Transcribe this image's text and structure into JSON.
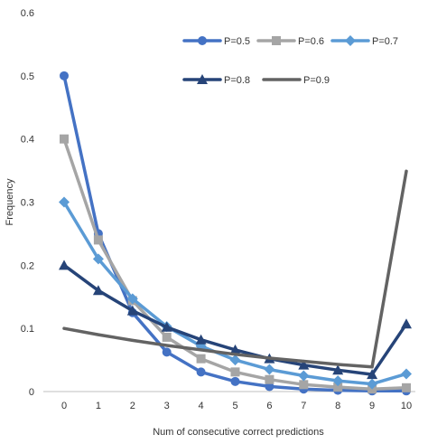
{
  "chart_data": {
    "type": "line",
    "xlabel": "Num of consecutive correct predictions",
    "ylabel": "Frequency",
    "x": [
      0,
      1,
      2,
      3,
      4,
      5,
      6,
      7,
      8,
      9,
      10
    ],
    "ylim": [
      0,
      0.6
    ],
    "yticks": [
      "0",
      "0.1",
      "0.2",
      "0.3",
      "0.4",
      "0.5",
      "0.6"
    ],
    "grid": false,
    "legend_position": "top-right",
    "series": [
      {
        "name": "P=0.5",
        "color": "#4472C4",
        "marker": "circle",
        "values": [
          0.5,
          0.25,
          0.125,
          0.0625,
          0.031,
          0.016,
          0.008,
          0.004,
          0.002,
          0.001,
          0.001
        ]
      },
      {
        "name": "P=0.6",
        "color": "#A5A5A5",
        "marker": "square",
        "values": [
          0.4,
          0.24,
          0.144,
          0.086,
          0.052,
          0.031,
          0.019,
          0.011,
          0.007,
          0.004,
          0.006
        ]
      },
      {
        "name": "P=0.7",
        "color": "#5B9BD5",
        "marker": "diamond",
        "values": [
          0.3,
          0.21,
          0.147,
          0.103,
          0.072,
          0.05,
          0.035,
          0.025,
          0.017,
          0.012,
          0.028
        ]
      },
      {
        "name": "P=0.8",
        "color": "#264478",
        "marker": "triangle",
        "values": [
          0.2,
          0.16,
          0.128,
          0.102,
          0.082,
          0.066,
          0.052,
          0.042,
          0.034,
          0.027,
          0.107
        ]
      },
      {
        "name": "P=0.9",
        "color": "#636363",
        "marker": "none",
        "values": [
          0.1,
          0.09,
          0.081,
          0.073,
          0.066,
          0.059,
          0.053,
          0.048,
          0.043,
          0.039,
          0.349
        ]
      }
    ]
  }
}
